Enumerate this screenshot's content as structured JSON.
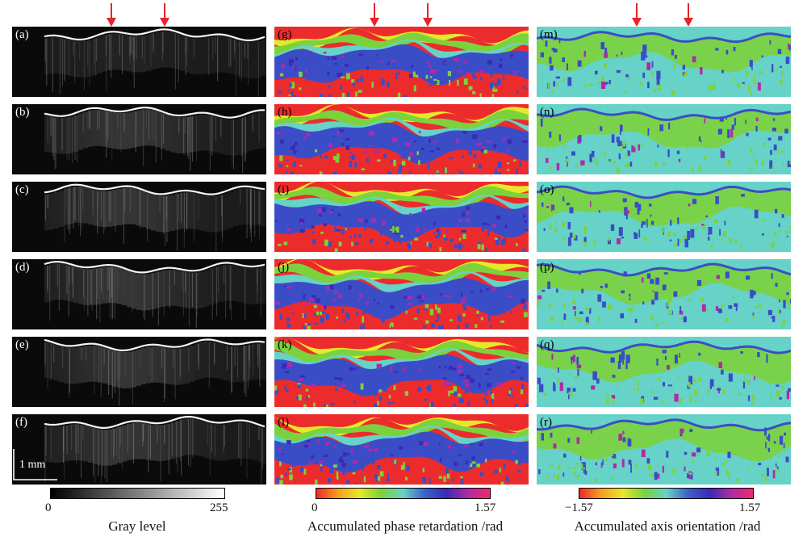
{
  "columns": [
    {
      "key": "intensity",
      "panel_labels": [
        "(a)",
        "(b)",
        "(c)",
        "(d)",
        "(e)",
        "(f)"
      ],
      "colorbar": {
        "min_label": "0",
        "max_label": "255",
        "title": "Gray level",
        "colors": [
          "#000000",
          "#ffffff"
        ]
      }
    },
    {
      "key": "retardation",
      "panel_labels": [
        "(g)",
        "(h)",
        "(i)",
        "(j)",
        "(k)",
        "(l)"
      ],
      "colorbar": {
        "min_label": "0",
        "max_label": "1.57",
        "title": "Accumulated phase retardation /rad",
        "colors": [
          "#f02828",
          "#f5a020",
          "#e8e82a",
          "#78d23c",
          "#66d2c8",
          "#3a62c8",
          "#3a2ab8",
          "#b02aa8",
          "#f0286e"
        ]
      }
    },
    {
      "key": "axis",
      "panel_labels": [
        "(m)",
        "(n)",
        "(o)",
        "(p)",
        "(q)",
        "(r)"
      ],
      "colorbar": {
        "min_label": "−1.57",
        "max_label": "1.57",
        "title": "Accumulated axis orientation /rad",
        "colors": [
          "#f02828",
          "#f5a020",
          "#e8e82a",
          "#78d23c",
          "#66d2c8",
          "#3a62c8",
          "#3a2ab8",
          "#b02aa8",
          "#f0286e"
        ]
      }
    }
  ],
  "scale_bar": {
    "label": "1 mm"
  },
  "colors": {
    "arrow": "#e8232a",
    "phase_background": "#ec2c2c",
    "phase_green": "#7cd23c",
    "phase_blue": "#3b4dc6",
    "axis_background": "#66d2c8",
    "axis_green": "#7cd23c",
    "axis_blue": "#3b4dc6"
  }
}
